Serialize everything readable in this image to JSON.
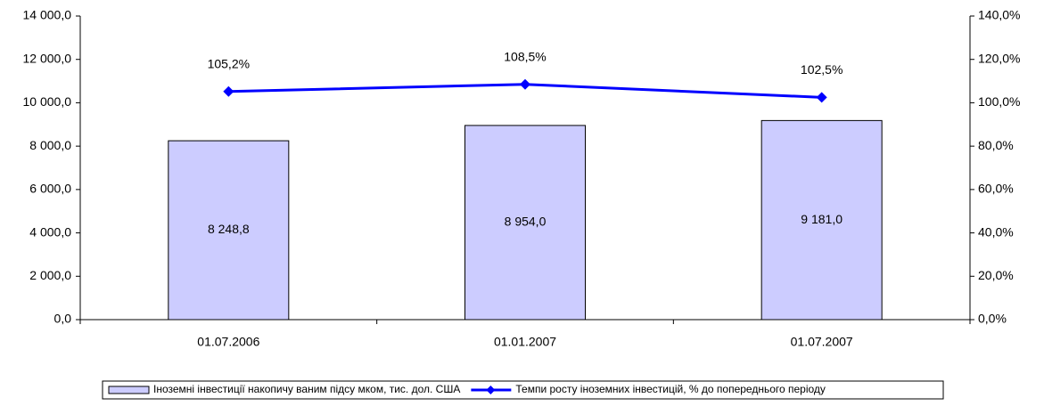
{
  "chart_data": {
    "type": "bar",
    "categories": [
      "01.07.2006",
      "01.01.2007",
      "01.07.2007"
    ],
    "series": [
      {
        "name": "Іноземні інвестиції накопичу ваним підсу мком, тис. дол. США",
        "type": "bar",
        "color": "#ccccff",
        "values": [
          8248.8,
          8954.0,
          9181.0
        ],
        "value_labels": [
          "8 248,8",
          "8 954,0",
          "9 181,0"
        ]
      },
      {
        "name": "Темпи росту іноземних інвестицій, % до попереднього періоду",
        "type": "line",
        "color": "#0000ff",
        "axis": "y2",
        "values": [
          105.2,
          108.5,
          102.5
        ],
        "value_labels": [
          "105,2%",
          "108,5%",
          "102,5%"
        ]
      }
    ],
    "ylim": [
      0,
      14000
    ],
    "yticks": [
      {
        "value": 0,
        "label": "0,0"
      },
      {
        "value": 2000,
        "label": "2 000,0"
      },
      {
        "value": 4000,
        "label": "4 000,0"
      },
      {
        "value": 6000,
        "label": "6 000,0"
      },
      {
        "value": 8000,
        "label": "8 000,0"
      },
      {
        "value": 10000,
        "label": "10 000,0"
      },
      {
        "value": 12000,
        "label": "12 000,0"
      },
      {
        "value": 14000,
        "label": "14 000,0"
      }
    ],
    "y2lim": [
      0,
      140
    ],
    "y2ticks": [
      {
        "value": 0,
        "label": "0,0%"
      },
      {
        "value": 20,
        "label": "20,0%"
      },
      {
        "value": 40,
        "label": "40,0%"
      },
      {
        "value": 60,
        "label": "60,0%"
      },
      {
        "value": 80,
        "label": "80,0%"
      },
      {
        "value": 100,
        "label": "100,0%"
      },
      {
        "value": 120,
        "label": "120,0%"
      },
      {
        "value": 140,
        "label": "140,0%"
      }
    ],
    "grid": false,
    "legend": "bottom"
  }
}
